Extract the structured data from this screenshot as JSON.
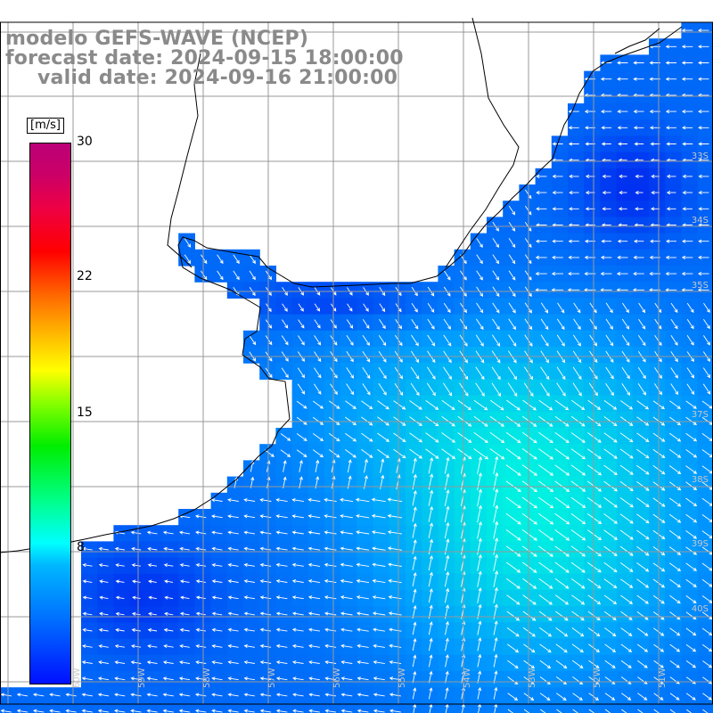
{
  "header": {
    "line1": "modelo GEFS-WAVE (NCEP)",
    "line2": "forecast date: 2024-09-15 18:00:00",
    "line3": "valid date: 2024-09-16 21:00:00"
  },
  "legend": {
    "unit": "[m/s]",
    "min": 0,
    "max": 30,
    "ticks": [
      "30",
      "22",
      "15",
      "8"
    ]
  },
  "map": {
    "lat_labels": [
      "33S",
      "34S",
      "35S",
      "37S",
      "38S",
      "39S",
      "40S"
    ],
    "lon_labels": [
      "60W",
      "59W",
      "58W",
      "57W",
      "56W",
      "55W",
      "54W",
      "53W",
      "52W",
      "51W"
    ],
    "colors": {
      "low": "#0022ee",
      "mid": "#0099ff",
      "high": "#00ffdd",
      "land": "#ffffff",
      "arrow": "#ffffff",
      "coast": "#000000",
      "grid": "#999999"
    }
  }
}
